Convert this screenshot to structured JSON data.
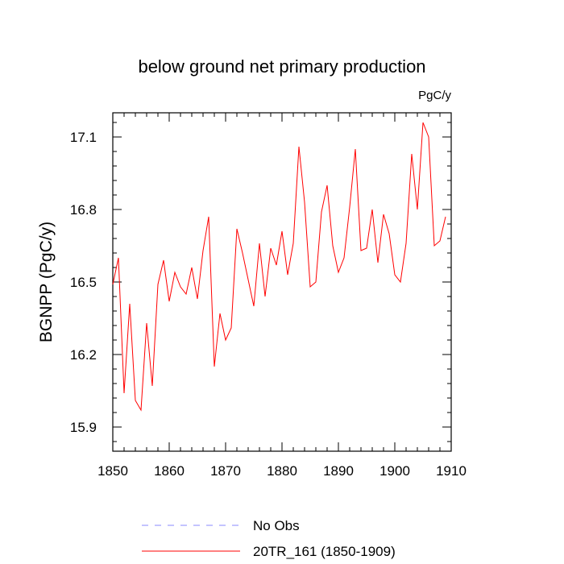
{
  "chart_data": {
    "type": "line",
    "title": "below ground net primary production",
    "units": "PgC/y",
    "xlabel": "",
    "ylabel": "BGNPP  (PgC/y)",
    "xlim": [
      1850,
      1910
    ],
    "ylim": [
      15.8,
      17.2
    ],
    "xticks": [
      1850,
      1860,
      1870,
      1880,
      1890,
      1900,
      1910
    ],
    "yticks": [
      15.9,
      16.2,
      16.5,
      16.8,
      17.1
    ],
    "ytick_labels": [
      "15.9",
      "16.2",
      "16.5",
      "16.8",
      "17.1"
    ],
    "series": [
      {
        "name": "20TR_161 (1850-1909)",
        "color": "#ff0000",
        "x": [
          1850,
          1851,
          1852,
          1853,
          1854,
          1855,
          1856,
          1857,
          1858,
          1859,
          1860,
          1861,
          1862,
          1863,
          1864,
          1865,
          1866,
          1867,
          1868,
          1869,
          1870,
          1871,
          1872,
          1873,
          1874,
          1875,
          1876,
          1877,
          1878,
          1879,
          1880,
          1881,
          1882,
          1883,
          1884,
          1885,
          1886,
          1887,
          1888,
          1889,
          1890,
          1891,
          1892,
          1893,
          1894,
          1895,
          1896,
          1897,
          1898,
          1899,
          1900,
          1901,
          1902,
          1903,
          1904,
          1905,
          1906,
          1907,
          1908,
          1909
        ],
        "values": [
          16.49,
          16.6,
          16.04,
          16.41,
          16.01,
          15.97,
          16.33,
          16.07,
          16.49,
          16.59,
          16.42,
          16.54,
          16.48,
          16.45,
          16.56,
          16.43,
          16.63,
          16.77,
          16.15,
          16.37,
          16.26,
          16.31,
          16.72,
          16.62,
          16.51,
          16.4,
          16.66,
          16.44,
          16.64,
          16.57,
          16.71,
          16.53,
          16.66,
          17.06,
          16.83,
          16.48,
          16.5,
          16.79,
          16.9,
          16.65,
          16.54,
          16.6,
          16.81,
          17.05,
          16.63,
          16.64,
          16.8,
          16.58,
          16.78,
          16.7,
          16.53,
          16.5,
          16.66,
          17.03,
          16.8,
          17.16,
          17.1,
          16.65,
          16.67,
          16.77
        ]
      }
    ],
    "legend": [
      {
        "label": "No Obs",
        "color": "#8888ff",
        "style": "dashed"
      },
      {
        "label": "20TR_161 (1850-1909)",
        "color": "#ff0000",
        "style": "solid"
      }
    ],
    "legend_position": "bottom"
  }
}
